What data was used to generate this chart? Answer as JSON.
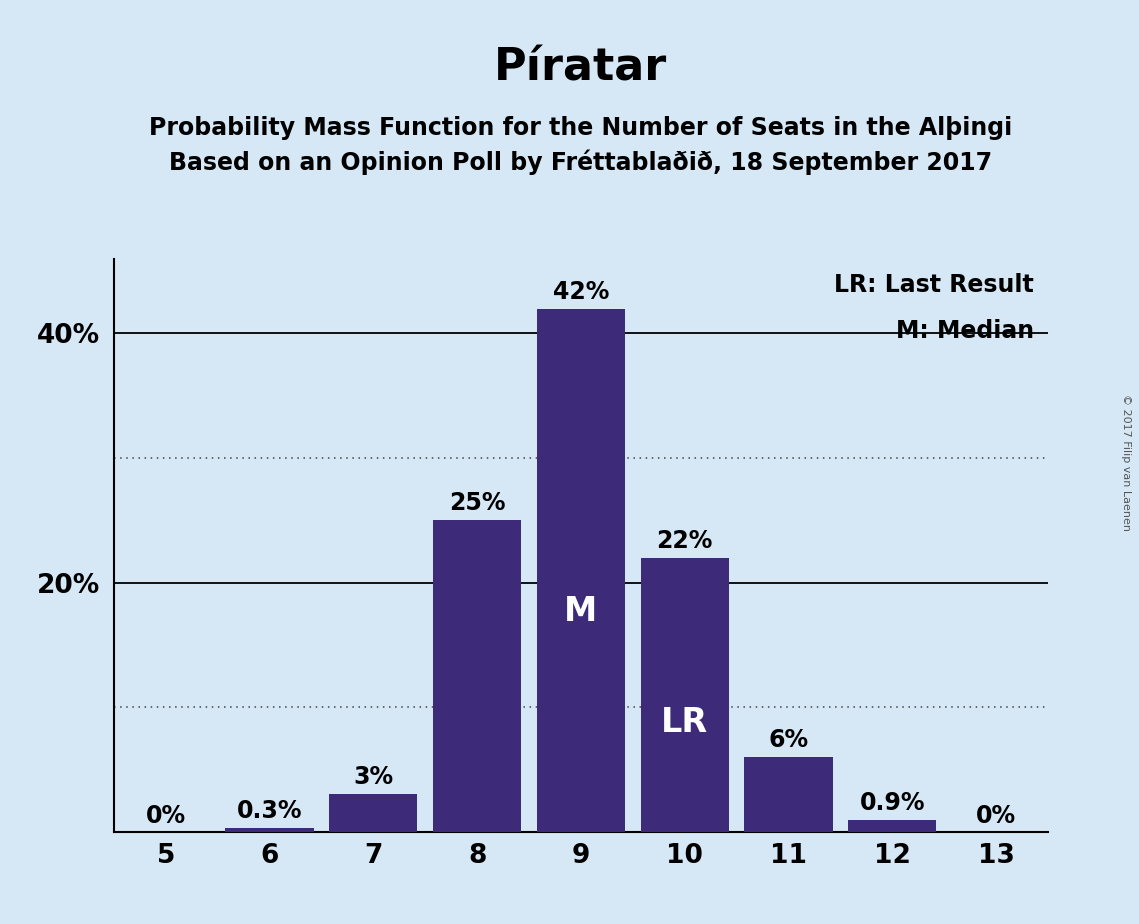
{
  "title": "Píratar",
  "subtitle1": "Probability Mass Function for the Number of Seats in the Alþingi",
  "subtitle2": "Based on an Opinion Poll by Fréttablaðið, 18 September 2017",
  "copyright": "© 2017 Filip van Laenen",
  "seats": [
    5,
    6,
    7,
    8,
    9,
    10,
    11,
    12,
    13
  ],
  "probabilities": [
    0.0,
    0.3,
    3.0,
    25.0,
    42.0,
    22.0,
    6.0,
    0.9,
    0.0
  ],
  "bar_color": "#3d2b7a",
  "background_color": "#d6e8f5",
  "bar_labels": [
    "0%",
    "0.3%",
    "3%",
    "25%",
    "42%",
    "22%",
    "6%",
    "0.9%",
    "0%"
  ],
  "median_seat": 9,
  "last_result_seat": 10,
  "legend_lr": "LR: Last Result",
  "legend_m": "M: Median",
  "ylim": [
    0,
    46
  ],
  "yticks": [
    0,
    20,
    40
  ],
  "ytick_labels": [
    "",
    "20%",
    "40%"
  ],
  "dotted_lines": [
    10,
    30
  ],
  "solid_lines": [
    20,
    40
  ],
  "bar_label_fontsize": 17,
  "tick_fontsize": 19,
  "legend_fontsize": 17,
  "title_fontsize": 32,
  "subtitle_fontsize": 17
}
